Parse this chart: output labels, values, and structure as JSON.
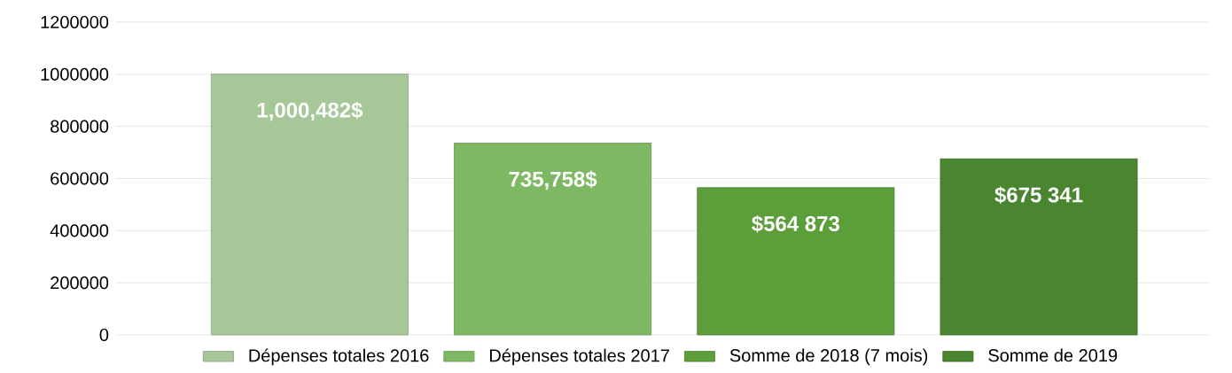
{
  "chart_data": {
    "type": "bar",
    "categories": [
      null,
      null,
      null,
      null
    ],
    "series": [
      {
        "name": "Dépenses totales 2016",
        "color": "#a6c797",
        "values": [
          1000482,
          null,
          null,
          null
        ],
        "value_labels": [
          "1,000,482$",
          null,
          null,
          null
        ]
      },
      {
        "name": "Dépenses totales 2017",
        "color": "#7fb862",
        "values": [
          null,
          735758,
          null,
          null
        ],
        "value_labels": [
          null,
          "735,758$",
          null,
          null
        ]
      },
      {
        "name": "Somme de 2018 (7 mois)",
        "color": "#5c9e3a",
        "values": [
          null,
          null,
          564873,
          null
        ],
        "value_labels": [
          null,
          null,
          "$564 873",
          null
        ]
      },
      {
        "name": "Somme de 2019",
        "color": "#4a8530",
        "values": [
          null,
          null,
          null,
          675341
        ],
        "value_labels": [
          null,
          null,
          null,
          "$675 341"
        ]
      }
    ],
    "ylim": [
      0,
      1200000
    ],
    "yticks": [
      0,
      200000,
      400000,
      600000,
      800000,
      1000000,
      1200000
    ],
    "grid": "y",
    "legend": "bottom"
  }
}
